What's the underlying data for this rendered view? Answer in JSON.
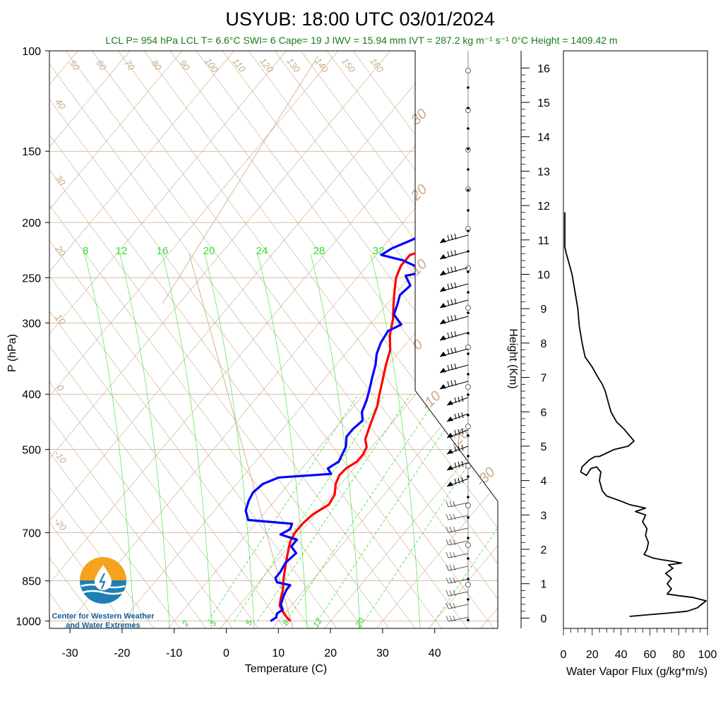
{
  "title": "USYUB: 18:00 UTC 03/01/2024",
  "subtitle": "LCL P= 954 hPa  LCL T= 6.6°C  SWI= 6  Cape= 19 J  IWV = 15.94 mm  IVT = 287.2 kg m⁻¹ s⁻¹  0°C Height = 1409.42 m",
  "logo": {
    "line1": "Center for Western Weather",
    "line2": "and Water Extremes"
  },
  "colors": {
    "temperature": "#ff0000",
    "dewpoint": "#0000ff",
    "isotherm": "#c8aa88",
    "mixing": "#33e033",
    "flux": "#000000"
  },
  "chart_data": [
    {
      "type": "line",
      "title": "USYUB: 18:00 UTC 03/01/2024",
      "xlabel": "Temperature (C)",
      "ylabel": "P (hPa)",
      "y_scale": "log-reversed",
      "xlim": [
        -35,
        52
      ],
      "ylim": [
        1030,
        100
      ],
      "x_ticks": [
        -30,
        -20,
        -10,
        0,
        10,
        20,
        30,
        40
      ],
      "y_ticks": [
        100,
        150,
        200,
        250,
        300,
        400,
        500,
        700,
        850,
        1000
      ],
      "isotherm_labels_top": [
        50,
        60,
        70,
        80,
        90,
        100,
        110,
        120,
        130,
        140,
        150,
        160
      ],
      "isotherm_labels_left": [
        40,
        30,
        20,
        10,
        0,
        -10,
        -20
      ],
      "isotherm_labels_right": [
        30,
        20,
        10,
        0,
        -10,
        -20,
        -30
      ],
      "mixing_ratio_labels_top": [
        8,
        12,
        16,
        20,
        24,
        28,
        32
      ],
      "mixing_ratio_labels_bottom": [
        2,
        3,
        5,
        8,
        12,
        20
      ],
      "series": [
        {
          "name": "Temperature",
          "points": [
            [
              12.3,
              1000
            ],
            [
              11,
              985
            ],
            [
              9.5,
              965
            ],
            [
              7.8,
              940
            ],
            [
              6.9,
              915
            ],
            [
              5.8,
              880
            ],
            [
              4.5,
              850
            ],
            [
              3.5,
              825
            ],
            [
              2.5,
              800
            ],
            [
              1.5,
              775
            ],
            [
              0.5,
              750
            ],
            [
              -0.5,
              725
            ],
            [
              -1,
              700
            ],
            [
              -1,
              675
            ],
            [
              -0.5,
              650
            ],
            [
              1,
              625
            ],
            [
              0.5,
              600
            ],
            [
              -1,
              575
            ],
            [
              -1.7,
              555
            ],
            [
              -1.5,
              540
            ],
            [
              -0.5,
              525
            ],
            [
              -0.5,
              510
            ],
            [
              -1,
              495
            ],
            [
              -2.5,
              480
            ],
            [
              -3.5,
              460
            ],
            [
              -4.5,
              440
            ],
            [
              -5.5,
              420
            ],
            [
              -7,
              400
            ],
            [
              -8.5,
              380
            ],
            [
              -10.5,
              355
            ],
            [
              -12,
              335
            ],
            [
              -14.5,
              315
            ],
            [
              -16.5,
              295
            ],
            [
              -18.5,
              280
            ],
            [
              -20.5,
              265
            ],
            [
              -22.5,
              250
            ],
            [
              -23.5,
              238
            ],
            [
              -23.5,
              228
            ],
            [
              -20.5,
              222
            ],
            [
              -18.5,
              216
            ],
            [
              -17,
              210
            ],
            [
              -16,
              204
            ],
            [
              -14.5,
              200
            ]
          ]
        },
        {
          "name": "Dewpoint",
          "points": [
            [
              8.5,
              1000
            ],
            [
              9,
              985
            ],
            [
              8.5,
              970
            ],
            [
              9,
              955
            ],
            [
              7.8,
              935
            ],
            [
              7,
              905
            ],
            [
              6.5,
              880
            ],
            [
              6.5,
              865
            ],
            [
              3.5,
              855
            ],
            [
              2.5,
              840
            ],
            [
              2.5,
              820
            ],
            [
              2,
              790
            ],
            [
              2.5,
              760
            ],
            [
              0.5,
              740
            ],
            [
              0.5,
              720
            ],
            [
              -3.5,
              705
            ],
            [
              -2.5,
              690
            ],
            [
              -3,
              675
            ],
            [
              -12,
              665
            ],
            [
              -14,
              640
            ],
            [
              -15,
              615
            ],
            [
              -15.5,
              595
            ],
            [
              -15,
              575
            ],
            [
              -13,
              560
            ],
            [
              -3.5,
              552
            ],
            [
              -5,
              540
            ],
            [
              -4,
              525
            ],
            [
              -4.5,
              510
            ],
            [
              -5,
              495
            ],
            [
              -6.5,
              475
            ],
            [
              -6.5,
              460
            ],
            [
              -6,
              445
            ],
            [
              -7.5,
              430
            ],
            [
              -8.5,
              410
            ],
            [
              -9.5,
              395
            ],
            [
              -11,
              375
            ],
            [
              -12.5,
              355
            ],
            [
              -14,
              340
            ],
            [
              -15,
              325
            ],
            [
              -15.5,
              310
            ],
            [
              -14,
              302
            ],
            [
              -17,
              290
            ],
            [
              -18,
              278
            ],
            [
              -19,
              268
            ],
            [
              -18.5,
              258
            ],
            [
              -21,
              248
            ],
            [
              -17,
              243
            ],
            [
              -21,
              238
            ],
            [
              -24,
              233
            ],
            [
              -29,
              228
            ],
            [
              -28,
              222
            ],
            [
              -26,
              216
            ],
            [
              -24,
              210
            ],
            [
              -23,
              205
            ],
            [
              -22,
              200
            ]
          ]
        }
      ]
    },
    {
      "type": "line",
      "xlabel": "Water Vapor Flux (g/kg*m/s)",
      "ylabel": "Height (Km)",
      "xlim": [
        0,
        100
      ],
      "ylim": [
        -0.3,
        16.5
      ],
      "x_ticks": [
        0,
        20,
        40,
        60,
        80,
        100
      ],
      "y_ticks": [
        0,
        1,
        2,
        3,
        4,
        5,
        6,
        7,
        8,
        9,
        10,
        11,
        12,
        13,
        14,
        15,
        16
      ],
      "series": [
        {
          "name": "Water Vapor Flux",
          "points": [
            [
              46,
              0.05
            ],
            [
              60,
              0.1
            ],
            [
              74,
              0.15
            ],
            [
              86,
              0.2
            ],
            [
              93,
              0.3
            ],
            [
              99,
              0.5
            ],
            [
              90,
              0.6
            ],
            [
              80,
              0.65
            ],
            [
              72,
              0.7
            ],
            [
              75,
              0.85
            ],
            [
              72,
              1
            ],
            [
              75,
              1.15
            ],
            [
              71,
              1.3
            ],
            [
              76,
              1.45
            ],
            [
              73,
              1.55
            ],
            [
              82,
              1.6
            ],
            [
              76,
              1.65
            ],
            [
              68,
              1.7
            ],
            [
              62,
              1.75
            ],
            [
              56,
              1.85
            ],
            [
              58,
              2
            ],
            [
              59,
              2.2
            ],
            [
              57,
              2.4
            ],
            [
              58,
              2.6
            ],
            [
              55,
              2.8
            ],
            [
              57,
              3
            ],
            [
              50,
              3.1
            ],
            [
              57,
              3.2
            ],
            [
              46,
              3.3
            ],
            [
              40,
              3.4
            ],
            [
              30,
              3.55
            ],
            [
              27,
              3.7
            ],
            [
              25,
              4
            ],
            [
              26,
              4.25
            ],
            [
              23,
              4.4
            ],
            [
              19,
              4.35
            ],
            [
              16,
              4.15
            ],
            [
              12,
              4.25
            ],
            [
              13,
              4.4
            ],
            [
              18,
              4.6
            ],
            [
              22,
              4.7
            ],
            [
              25,
              4.7
            ],
            [
              35,
              4.9
            ],
            [
              45,
              5
            ],
            [
              49,
              5.15
            ],
            [
              46,
              5.3
            ],
            [
              42,
              5.5
            ],
            [
              37,
              5.7
            ],
            [
              33,
              6
            ],
            [
              31,
              6.3
            ],
            [
              29,
              6.6
            ],
            [
              27,
              6.8
            ],
            [
              24,
              7
            ],
            [
              20,
              7.3
            ],
            [
              15,
              7.6
            ],
            [
              13,
              8
            ],
            [
              11,
              8.5
            ],
            [
              10,
              9
            ],
            [
              8,
              9.5
            ],
            [
              6,
              10
            ],
            [
              4,
              10.3
            ],
            [
              2,
              10.6
            ],
            [
              1,
              10.8
            ],
            [
              1,
              11.2
            ],
            [
              1,
              11.8
            ]
          ]
        }
      ]
    }
  ]
}
